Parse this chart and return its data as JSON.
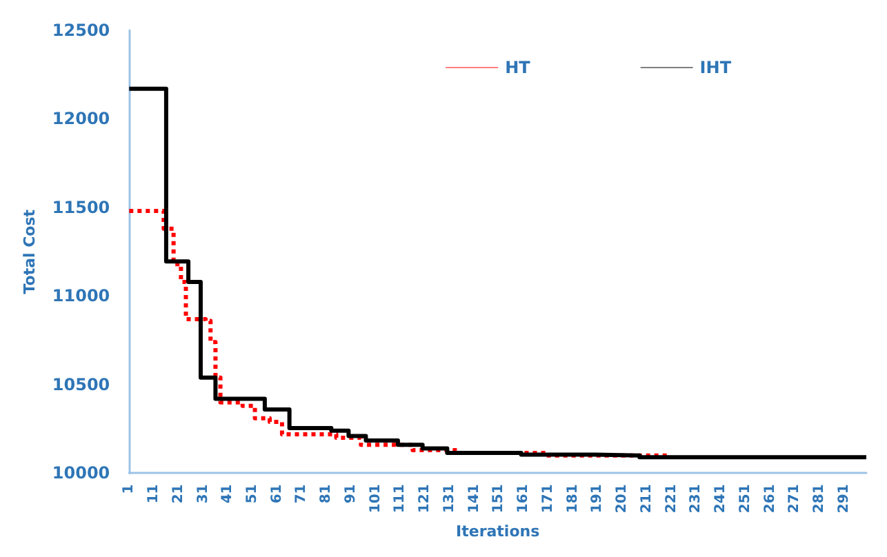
{
  "chart_data": {
    "type": "step",
    "xlabel": "Iterations",
    "ylabel": "Total Cost",
    "xlim": [
      1,
      300
    ],
    "xticks": [
      1,
      11,
      21,
      31,
      41,
      51,
      61,
      71,
      81,
      91,
      101,
      111,
      121,
      131,
      141,
      151,
      161,
      171,
      181,
      191,
      201,
      211,
      221,
      231,
      241,
      251,
      261,
      271,
      281,
      291
    ],
    "ylim": [
      10000,
      12500
    ],
    "yticks": [
      10000,
      10500,
      11000,
      11500,
      12000,
      12500
    ],
    "grid": false,
    "legend": "top right",
    "series": [
      {
        "name": "HT",
        "color": "#ff0000",
        "line_style": "dotted",
        "x": [
          1,
          15,
          19,
          22,
          24,
          32,
          34,
          36,
          38,
          47,
          52,
          58,
          63,
          85,
          95,
          116,
          135,
          170,
          220
        ],
        "values": [
          11480,
          11380,
          11180,
          11080,
          10870,
          10860,
          10740,
          10540,
          10400,
          10380,
          10310,
          10290,
          10220,
          10200,
          10160,
          10130,
          10115,
          10100,
          10100
        ]
      },
      {
        "name": "IHT",
        "color": "#000000",
        "line_style": "solid",
        "x": [
          1,
          16,
          25,
          30,
          36,
          56,
          66,
          83,
          90,
          97,
          110,
          120,
          130,
          160,
          190,
          208,
          300
        ],
        "values": [
          12170,
          11195,
          11080,
          10540,
          10420,
          10360,
          10255,
          10240,
          10210,
          10185,
          10160,
          10140,
          10115,
          10105,
          10100,
          10090,
          10090
        ]
      }
    ]
  }
}
